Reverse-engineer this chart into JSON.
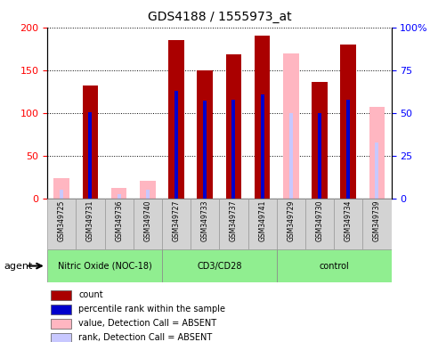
{
  "title": "GDS4188 / 1555973_at",
  "samples": [
    "GSM349725",
    "GSM349731",
    "GSM349736",
    "GSM349740",
    "GSM349727",
    "GSM349733",
    "GSM349737",
    "GSM349741",
    "GSM349729",
    "GSM349730",
    "GSM349734",
    "GSM349739"
  ],
  "count_values": [
    null,
    132,
    null,
    null,
    185,
    150,
    168,
    190,
    null,
    136,
    180,
    null
  ],
  "rank_values": [
    null,
    101,
    null,
    null,
    126,
    114,
    115,
    122,
    null,
    100,
    115,
    null
  ],
  "absent_count_values": [
    24,
    null,
    12,
    21,
    null,
    null,
    null,
    null,
    170,
    null,
    null,
    107
  ],
  "absent_rank_values": [
    10,
    null,
    5,
    10,
    null,
    null,
    null,
    null,
    100,
    null,
    null,
    65
  ],
  "ylim_left": [
    0,
    200
  ],
  "ylim_right": [
    0,
    100
  ],
  "yticks_left": [
    0,
    50,
    100,
    150,
    200
  ],
  "ytick_labels_right": [
    "0",
    "25",
    "50",
    "75",
    "100%"
  ],
  "color_count": "#aa0000",
  "color_rank": "#0000cc",
  "color_absent_count": "#ffb6c1",
  "color_absent_rank": "#c8c8ff",
  "groups": [
    {
      "label": "Nitric Oxide (NOC-18)",
      "start": 0,
      "end": 3
    },
    {
      "label": "CD3/CD28",
      "start": 4,
      "end": 7
    },
    {
      "label": "control",
      "start": 8,
      "end": 11
    }
  ],
  "legend_items": [
    {
      "color": "#aa0000",
      "label": "count"
    },
    {
      "color": "#0000cc",
      "label": "percentile rank within the sample"
    },
    {
      "color": "#ffb6c1",
      "label": "value, Detection Call = ABSENT"
    },
    {
      "color": "#c8c8ff",
      "label": "rank, Detection Call = ABSENT"
    }
  ]
}
